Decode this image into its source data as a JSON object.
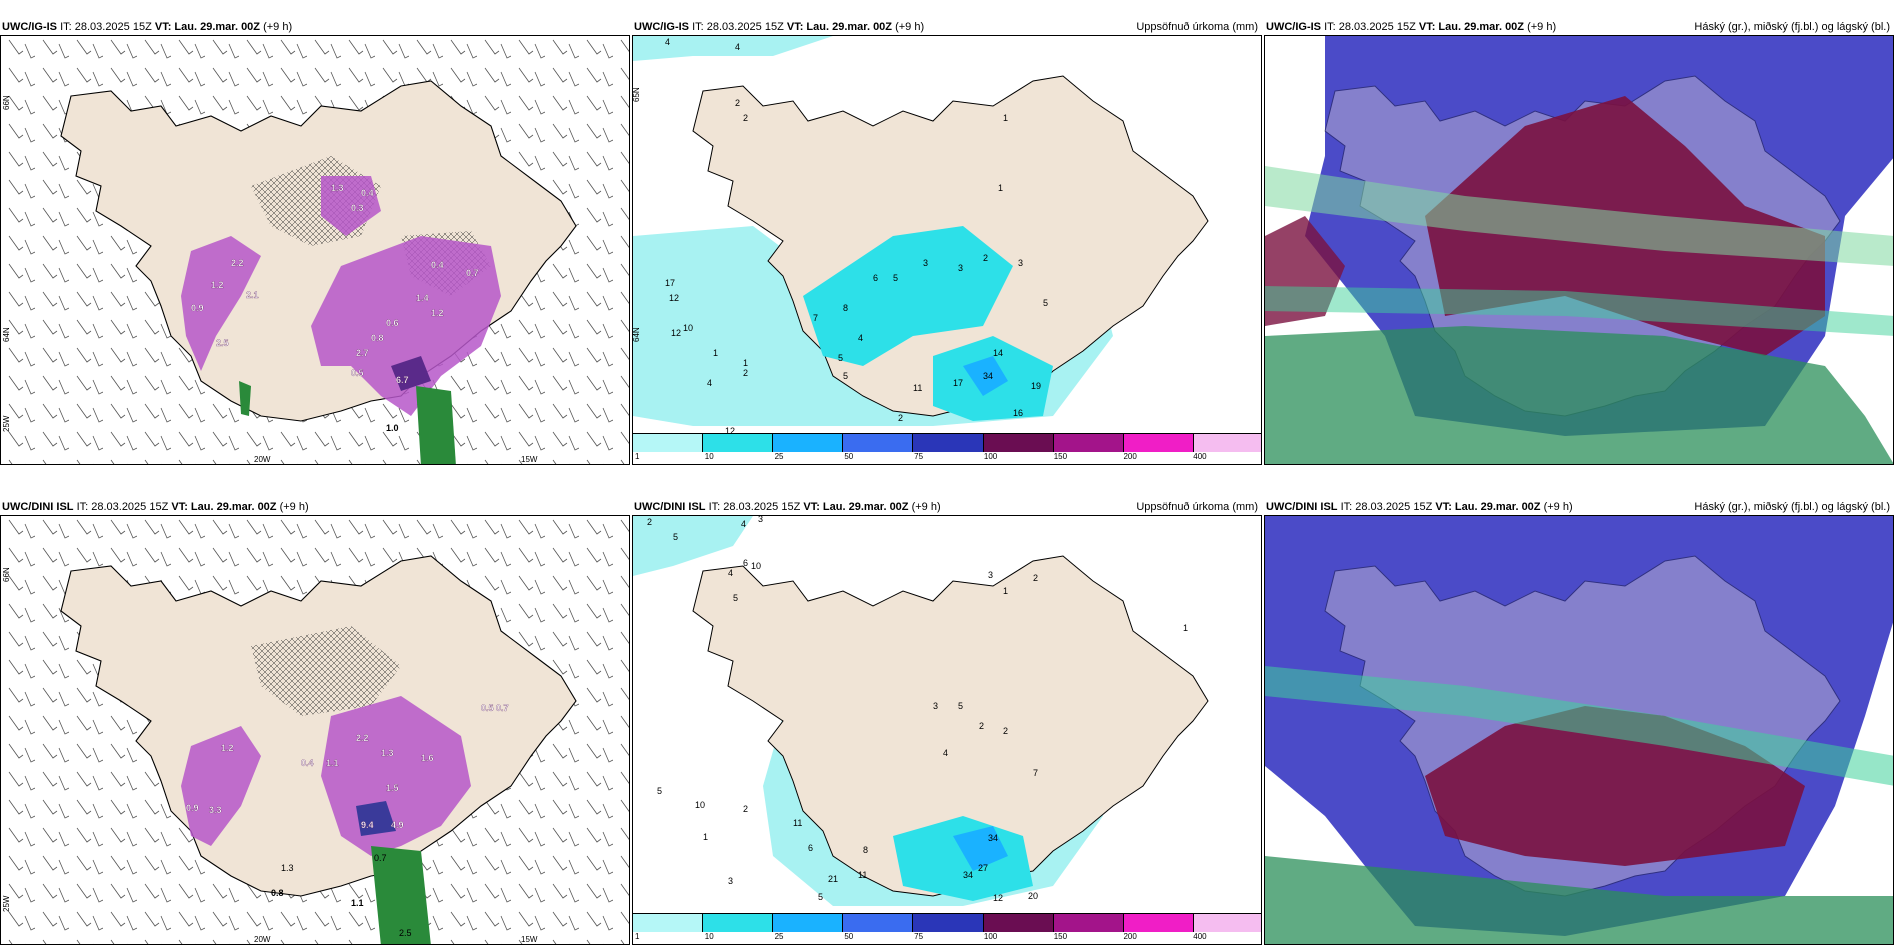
{
  "panels": [
    {
      "model": "UWC/IG-IS",
      "it": "IT: 28.03.2025 15Z",
      "vt_label": "VT:",
      "vt_value": "Lau. 29.mar. 00Z",
      "lead": "(+9 h)",
      "right_title": "",
      "axis": {
        "lat1": "66N",
        "lat2": "64N",
        "lat3": "25W",
        "lon1": "20W",
        "lon2": "15W"
      },
      "values": [
        "1.2",
        "2.1",
        "0.9",
        "2.2",
        "1.3",
        "0.4",
        "0.3",
        "0.6",
        "2.5",
        "1.4",
        "0.5",
        "0.8",
        "6.7",
        "1.0",
        "0.7",
        "2.7",
        "0.4",
        "1.2"
      ]
    },
    {
      "model": "UWC/IG-IS",
      "it": "IT: 28.03.2025 15Z",
      "vt_label": "VT:",
      "vt_value": "Lau. 29.mar. 00Z",
      "lead": "(+9 h)",
      "right_title": "Uppsöfnuð úrkoma (mm)",
      "axis": {
        "lat1": "65N",
        "lat2": "64N"
      },
      "values": [
        "4",
        "4",
        "2",
        "2",
        "1",
        "1",
        "3",
        "6",
        "5",
        "3",
        "2",
        "3",
        "5",
        "17",
        "12",
        "10",
        "12",
        "1",
        "2",
        "4",
        "7",
        "8",
        "4",
        "5",
        "14",
        "34",
        "17",
        "11",
        "19",
        "16",
        "2",
        "1",
        "5",
        "12"
      ],
      "scale": [
        "1",
        "10",
        "25",
        "50",
        "75",
        "100",
        "150",
        "200",
        "400"
      ]
    },
    {
      "model": "UWC/IG-IS",
      "it": "IT: 28.03.2025 15Z",
      "vt_label": "VT:",
      "vt_value": "Lau. 29.mar. 00Z",
      "lead": "(+9 h)",
      "right_title": "Háský (gr.), miðský (fj.bl.) og lágský (bl.)"
    },
    {
      "model": "UWC/DINI ISL",
      "it": "IT: 28.03.2025 15Z",
      "vt_label": "VT:",
      "vt_value": "Lau. 29.mar. 00Z",
      "lead": "(+9 h)",
      "right_title": "",
      "axis": {
        "lat1": "66N",
        "lat2": "25W",
        "lon1": "20W",
        "lon2": "15W"
      },
      "values": [
        "2.2",
        "1.3",
        "1.5",
        "0.4",
        "1.1",
        "9.4",
        "4.9",
        "0.8",
        "1.3",
        "0.7",
        "1.1",
        "2.5",
        "3.3",
        "0.9",
        "1.6",
        "0.5",
        "0.7",
        "1.2"
      ]
    },
    {
      "model": "UWC/DINI ISL",
      "it": "IT: 28.03.2025 15Z",
      "vt_label": "VT:",
      "vt_value": "Lau. 29.mar. 00Z",
      "lead": "(+9 h)",
      "right_title": "Uppsöfnuð úrkoma (mm)",
      "values": [
        "2",
        "5",
        "4",
        "3",
        "6",
        "10",
        "4",
        "5",
        "3",
        "2",
        "1",
        "1",
        "3",
        "5",
        "4",
        "2",
        "2",
        "7",
        "5",
        "10",
        "11",
        "6",
        "8",
        "27",
        "34",
        "34",
        "21",
        "11",
        "12",
        "20",
        "3",
        "5",
        "1",
        "2"
      ],
      "scale": [
        "1",
        "10",
        "25",
        "50",
        "75",
        "100",
        "150",
        "200",
        "400"
      ]
    },
    {
      "model": "UWC/DINI ISL",
      "it": "IT: 28.03.2025 15Z",
      "vt_label": "VT:",
      "vt_value": "Lau. 29.mar. 00Z",
      "lead": "(+9 h)",
      "right_title": "Háský (gr.), miðský (fj.bl.) og lágský (bl.)"
    }
  ],
  "colors": {
    "land": "#f0e4d6",
    "precip_light": "#a8f2f2",
    "precip_cyan": "#2de0e8",
    "precip_blue": "#1ab2ff",
    "cloud_high": "#2b8f5a",
    "cloud_mid": "#7a1140",
    "cloud_low": "#4b4bc8"
  }
}
